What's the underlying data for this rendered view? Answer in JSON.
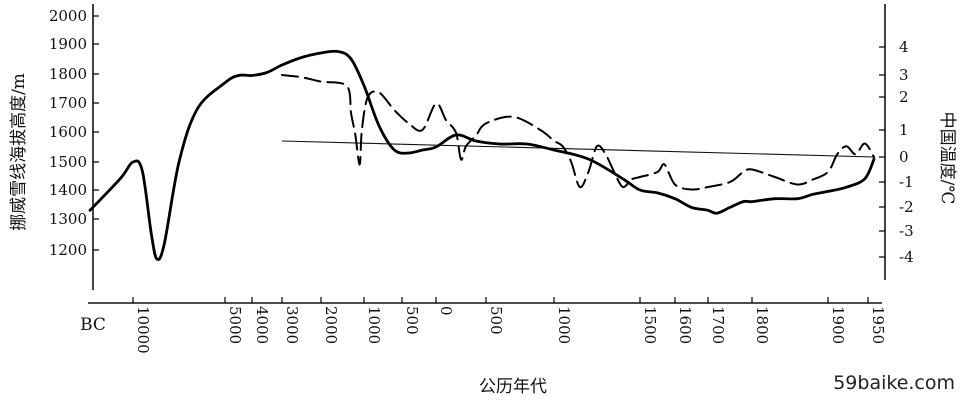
{
  "chart_data": {
    "type": "line",
    "xlabel": "公历年代",
    "ylabel_left": "挪威雪线海拔高度/m",
    "ylabel_right": "中国温度/℃",
    "era_label": "BC",
    "x_ticks": [
      "10000",
      "5000",
      "4000",
      "3000",
      "2000",
      "1000",
      "500",
      "0",
      "500",
      "1000",
      "1500",
      "1600",
      "1700",
      "1800",
      "1900",
      "1950"
    ],
    "left_ticks": [
      "2000",
      "1900",
      "1800",
      "1700",
      "1600",
      "1500",
      "1400",
      "1300",
      "1200"
    ],
    "right_ticks": [
      "4",
      "3",
      "2",
      "1",
      "0",
      "-1",
      "-2",
      "-3",
      "-4"
    ],
    "left_ylim": [
      1100,
      2000
    ],
    "right_ylim": [
      -4.5,
      4.8
    ],
    "reference_line": {
      "y_right": 0
    },
    "series": [
      {
        "style": "solid",
        "axis": "left",
        "points": [
          [
            -11000,
            1330
          ],
          [
            -10300,
            1440
          ],
          [
            -10000,
            1500
          ],
          [
            -9500,
            1470
          ],
          [
            -9000,
            1250
          ],
          [
            -8700,
            1170
          ],
          [
            -8300,
            1220
          ],
          [
            -7500,
            1500
          ],
          [
            -6500,
            1680
          ],
          [
            -5000,
            1770
          ],
          [
            -4500,
            1795
          ],
          [
            -4000,
            1795
          ],
          [
            -3500,
            1805
          ],
          [
            -3000,
            1830
          ],
          [
            -2500,
            1855
          ],
          [
            -2000,
            1870
          ],
          [
            -1600,
            1875
          ],
          [
            -1300,
            1850
          ],
          [
            -1000,
            1760
          ],
          [
            -800,
            1620
          ],
          [
            -600,
            1540
          ],
          [
            -400,
            1530
          ],
          [
            -200,
            1540
          ],
          [
            0,
            1550
          ],
          [
            200,
            1590
          ],
          [
            400,
            1570
          ],
          [
            600,
            1560
          ],
          [
            800,
            1560
          ],
          [
            1000,
            1540
          ],
          [
            1200,
            1510
          ],
          [
            1400,
            1440
          ],
          [
            1500,
            1400
          ],
          [
            1550,
            1390
          ],
          [
            1600,
            1370
          ],
          [
            1650,
            1340
          ],
          [
            1700,
            1330
          ],
          [
            1720,
            1320
          ],
          [
            1750,
            1340
          ],
          [
            1780,
            1360
          ],
          [
            1800,
            1360
          ],
          [
            1830,
            1370
          ],
          [
            1860,
            1370
          ],
          [
            1880,
            1385
          ],
          [
            1900,
            1395
          ],
          [
            1920,
            1410
          ],
          [
            1940,
            1440
          ],
          [
            1950,
            1510
          ]
        ]
      },
      {
        "style": "dashed",
        "axis": "right",
        "points": [
          [
            -3000,
            3.0
          ],
          [
            -2500,
            2.9
          ],
          [
            -2000,
            2.7
          ],
          [
            -1400,
            2.5
          ],
          [
            -1300,
            1.5
          ],
          [
            -1200,
            0.8
          ],
          [
            -1100,
            -0.3
          ],
          [
            -1050,
            1.0
          ],
          [
            -950,
            2.0
          ],
          [
            -800,
            2.2
          ],
          [
            -600,
            1.6
          ],
          [
            -400,
            1.2
          ],
          [
            -200,
            1.0
          ],
          [
            0,
            1.8
          ],
          [
            100,
            1.3
          ],
          [
            200,
            0.9
          ],
          [
            250,
            -0.1
          ],
          [
            300,
            0.4
          ],
          [
            400,
            0.8
          ],
          [
            500,
            1.2
          ],
          [
            700,
            1.4
          ],
          [
            900,
            1.0
          ],
          [
            1000,
            0.6
          ],
          [
            1050,
            0.4
          ],
          [
            1100,
            -0.2
          ],
          [
            1150,
            -1.2
          ],
          [
            1200,
            -0.6
          ],
          [
            1250,
            0.4
          ],
          [
            1300,
            0.1
          ],
          [
            1350,
            -0.6
          ],
          [
            1400,
            -1.2
          ],
          [
            1450,
            -0.9
          ],
          [
            1500,
            -0.8
          ],
          [
            1550,
            -0.6
          ],
          [
            1570,
            -0.3
          ],
          [
            1600,
            -1.1
          ],
          [
            1650,
            -1.3
          ],
          [
            1700,
            -1.2
          ],
          [
            1750,
            -1.0
          ],
          [
            1780,
            -0.6
          ],
          [
            1800,
            -0.5
          ],
          [
            1830,
            -0.8
          ],
          [
            1860,
            -1.1
          ],
          [
            1880,
            -0.9
          ],
          [
            1900,
            -0.6
          ],
          [
            1910,
            0.1
          ],
          [
            1920,
            0.4
          ],
          [
            1930,
            0.1
          ],
          [
            1940,
            0.5
          ],
          [
            1950,
            0.0
          ]
        ]
      }
    ]
  },
  "watermark": "59baike.com"
}
